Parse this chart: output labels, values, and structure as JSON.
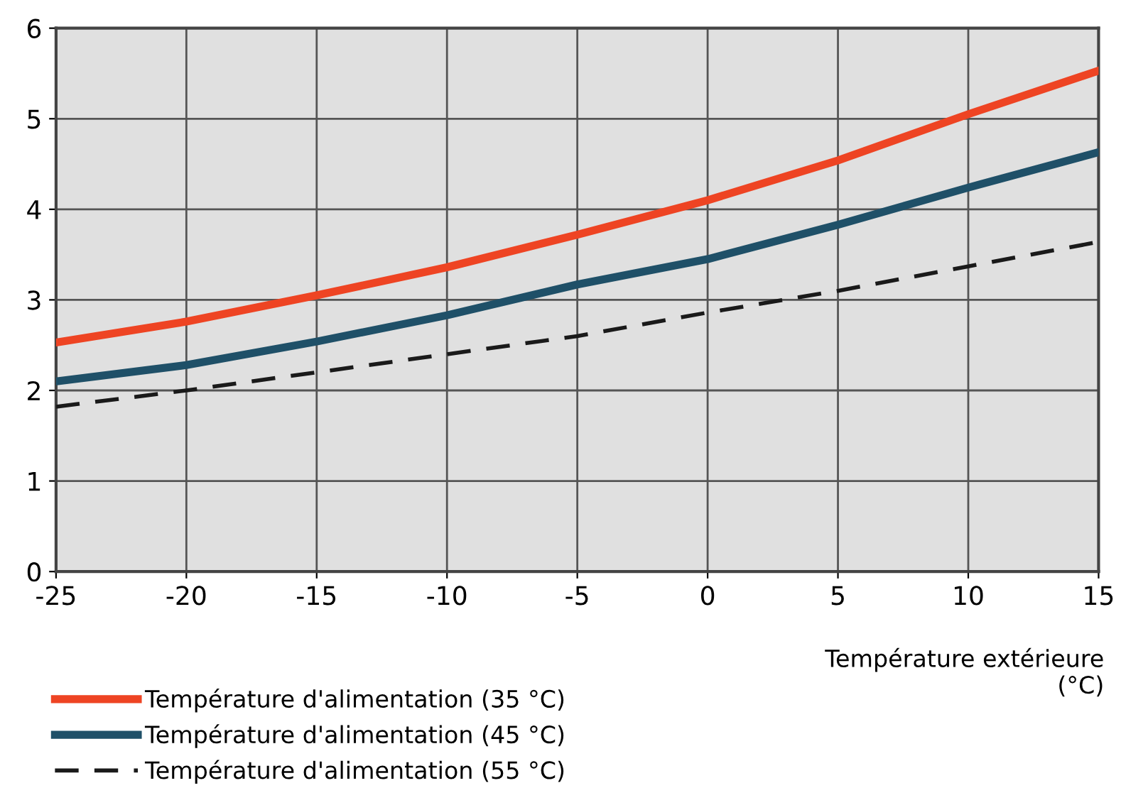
{
  "chart_data": {
    "type": "line",
    "xlabel": "Température extérieure\n(°C)",
    "x": [
      -25,
      -20,
      -15,
      -10,
      -5,
      0,
      5,
      10,
      15
    ],
    "xlim": [
      -25,
      15
    ],
    "xticks": [
      -25,
      -20,
      -15,
      -10,
      -5,
      0,
      5,
      10,
      15
    ],
    "ylim": [
      0,
      6
    ],
    "yticks": [
      0,
      1,
      2,
      3,
      4,
      5,
      6
    ],
    "grid": true,
    "legend": "bottom left",
    "marker": "none",
    "series": [
      {
        "name": "Température d'alimentation (35 °C)",
        "color": "#ee4423",
        "line_style": "solid",
        "values": [
          2.53,
          2.76,
          3.05,
          3.36,
          3.72,
          4.1,
          4.54,
          5.05,
          5.53
        ]
      },
      {
        "name": "Température d'alimentation (45 °C)",
        "color": "#1f5068",
        "line_style": "solid",
        "values": [
          2.1,
          2.28,
          2.54,
          2.83,
          3.17,
          3.45,
          3.83,
          4.24,
          4.63
        ]
      },
      {
        "name": "Température d'alimentation (55 °C)",
        "color": "#1a1a1a",
        "line_style": "dashed",
        "values": [
          1.82,
          2.0,
          2.2,
          2.4,
          2.6,
          2.86,
          3.1,
          3.37,
          3.64
        ]
      }
    ]
  }
}
